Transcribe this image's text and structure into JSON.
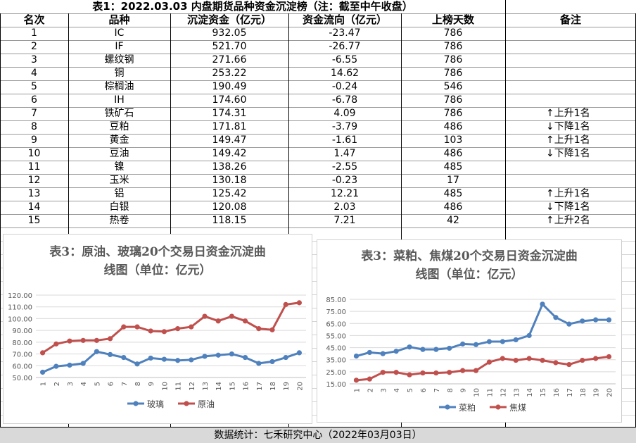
{
  "table": {
    "title": "表1：2022.03.03 内盘期货品种资金沉淀榜（注：截至中午收盘）",
    "headers": [
      "名次",
      "品种",
      "沉淀资金（亿元）",
      "资金流向（亿元）",
      "上榜天数",
      "备注"
    ],
    "rows": [
      [
        "1",
        "IC",
        "932.05",
        "-23.47",
        "786",
        ""
      ],
      [
        "2",
        "IF",
        "521.70",
        "-26.77",
        "786",
        ""
      ],
      [
        "3",
        "螺纹钢",
        "271.66",
        "-6.55",
        "786",
        ""
      ],
      [
        "4",
        "铜",
        "253.22",
        "14.62",
        "786",
        ""
      ],
      [
        "5",
        "棕榈油",
        "190.49",
        "-0.24",
        "546",
        ""
      ],
      [
        "6",
        "IH",
        "174.60",
        "-6.78",
        "786",
        ""
      ],
      [
        "7",
        "铁矿石",
        "174.31",
        "4.09",
        "786",
        "↑上升1名"
      ],
      [
        "8",
        "豆粕",
        "171.81",
        "-3.79",
        "486",
        "↓下降1名"
      ],
      [
        "9",
        "黄金",
        "149.47",
        "-1.61",
        "103",
        "↑上升1名"
      ],
      [
        "10",
        "豆油",
        "149.42",
        "1.47",
        "486",
        "↓下降1名"
      ],
      [
        "11",
        "镍",
        "138.26",
        "-2.55",
        "485",
        ""
      ],
      [
        "12",
        "玉米",
        "130.18",
        "-0.23",
        "17",
        ""
      ],
      [
        "13",
        "铝",
        "125.42",
        "12.21",
        "485",
        "↑上升1名"
      ],
      [
        "14",
        "白银",
        "120.08",
        "2.03",
        "486",
        "↓下降1名"
      ],
      [
        "15",
        "热卷",
        "118.15",
        "7.21",
        "42",
        "↑上升2名"
      ]
    ]
  },
  "footer": "数据统计：七禾研究中心（2022年03月03日）",
  "chart_data": [
    {
      "type": "line",
      "title": "表3：原油、玻璃20个交易日资金沉淀曲线图（单位：亿元）",
      "title_line1": "表3：原油、玻璃20个交易日资金沉淀曲",
      "title_line2": "线图（单位：亿元）",
      "x": [
        "1",
        "2",
        "3",
        "4",
        "5",
        "6",
        "7",
        "8",
        "9",
        "10",
        "11",
        "12",
        "13",
        "14",
        "15",
        "16",
        "17",
        "18",
        "19",
        "20"
      ],
      "ylim": [
        50,
        120
      ],
      "yticks": [
        "50.00",
        "60.00",
        "70.00",
        "80.00",
        "90.00",
        "100.00",
        "110.00",
        "120.00"
      ],
      "grid": true,
      "legend": "bottom",
      "series": [
        {
          "name": "玻璃",
          "color": "#4f81bd",
          "values": [
            54.5,
            59.5,
            60.5,
            62,
            72,
            69.5,
            67,
            61.5,
            66.5,
            65.5,
            64.5,
            65,
            68,
            69,
            70,
            67,
            62,
            63.5,
            67,
            71
          ]
        },
        {
          "name": "原油",
          "color": "#c0504d",
          "values": [
            71,
            78.5,
            81,
            81.5,
            81.5,
            83,
            93,
            93,
            89.5,
            89,
            91.5,
            93,
            102,
            98,
            102,
            98,
            91.5,
            90.5,
            112,
            113.5
          ]
        }
      ]
    },
    {
      "type": "line",
      "title": "表3：菜粕、焦煤20个交易日资金沉淀曲线图（单位：亿元）",
      "title_line1": "表3：菜粕、焦煤20个交易日资金沉淀曲",
      "title_line2": "线图（单位：亿元）",
      "x": [
        "1",
        "2",
        "3",
        "4",
        "5",
        "6",
        "7",
        "8",
        "9",
        "10",
        "11",
        "12",
        "13",
        "14",
        "15",
        "16",
        "17",
        "18",
        "19",
        "20"
      ],
      "ylim": [
        15,
        85
      ],
      "yticks": [
        "15.00",
        "25.00",
        "35.00",
        "45.00",
        "55.00",
        "65.00",
        "75.00",
        "85.00"
      ],
      "grid": true,
      "legend": "bottom",
      "series": [
        {
          "name": "菜粕",
          "color": "#4f81bd",
          "values": [
            38,
            41,
            40,
            42,
            45.5,
            43.5,
            43.5,
            44.5,
            48,
            47.5,
            50,
            50,
            51.5,
            55,
            81,
            70,
            64.5,
            67,
            68,
            68
          ]
        },
        {
          "name": "焦煤",
          "color": "#c0504d",
          "values": [
            18,
            19,
            24.5,
            24.5,
            22.5,
            24,
            24,
            24.5,
            26,
            26,
            33,
            36,
            34.5,
            36,
            34.5,
            32.5,
            31,
            34.5,
            36,
            37.5
          ]
        }
      ]
    }
  ]
}
